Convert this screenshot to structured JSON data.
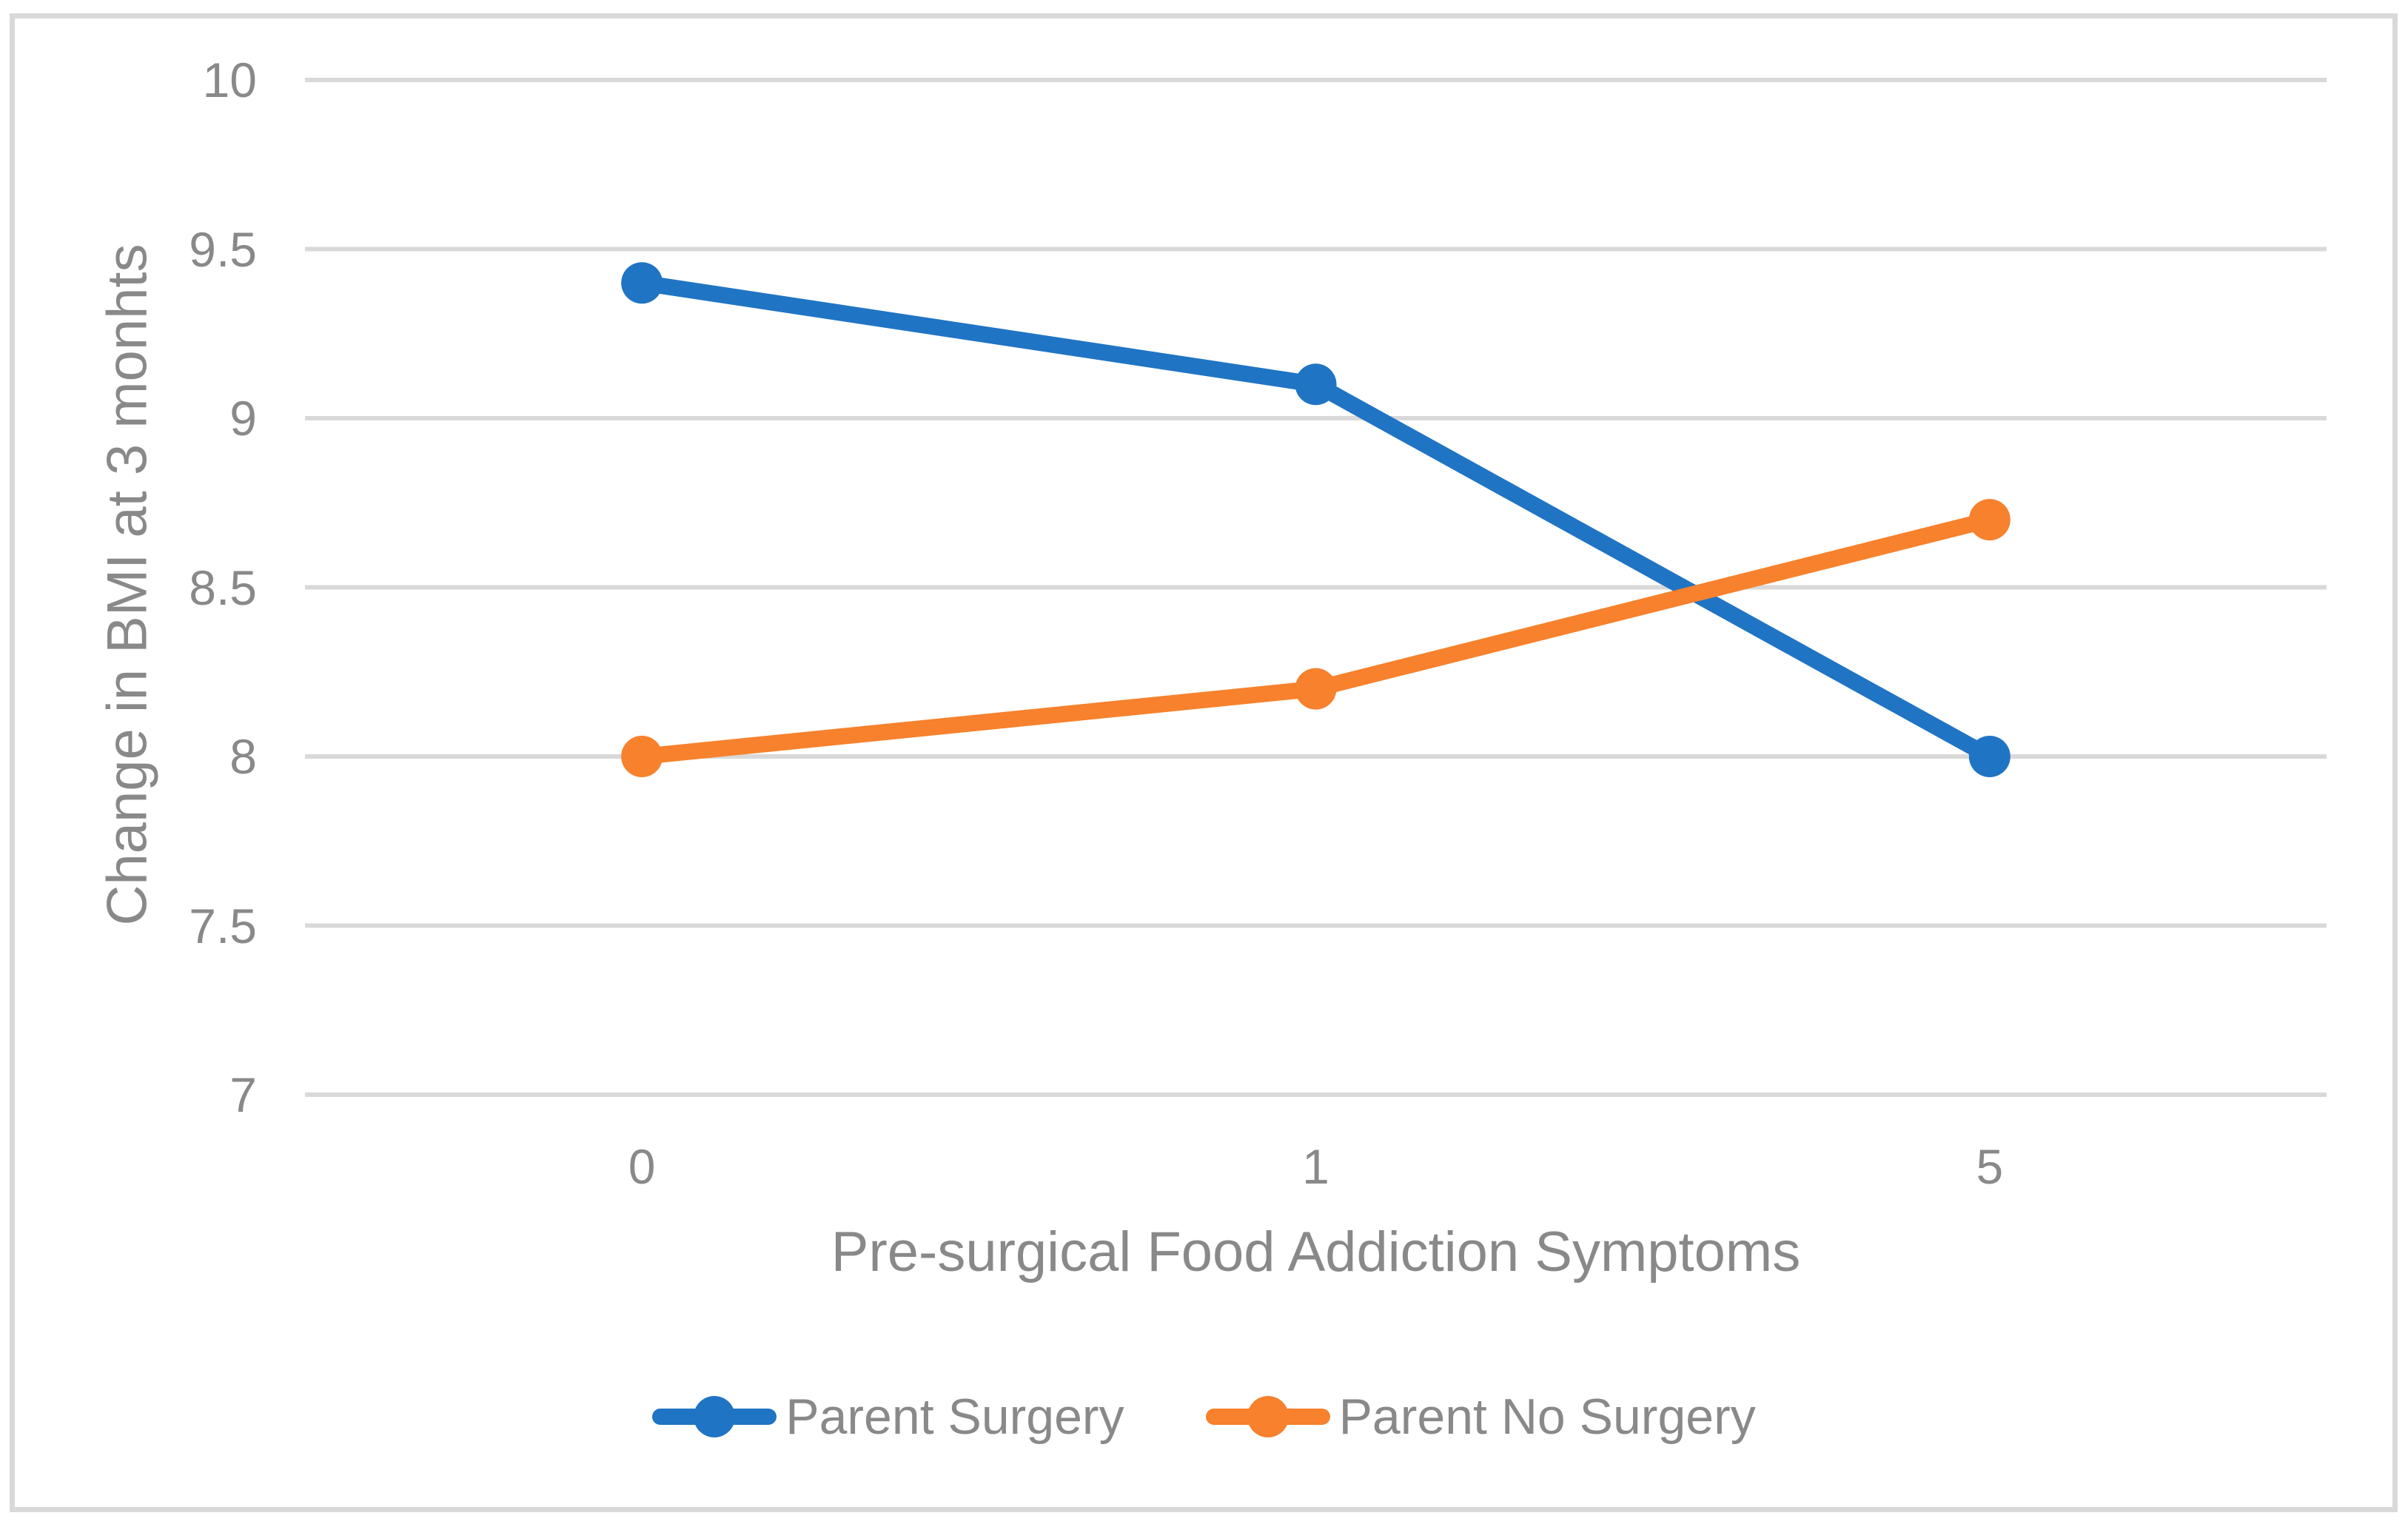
{
  "chart_data": {
    "type": "line",
    "title": "",
    "categories": [
      "0",
      "1",
      "5"
    ],
    "series": [
      {
        "name": "Parent Surgery",
        "color": "#2074C4",
        "values": [
          9.4,
          9.1,
          8.0
        ]
      },
      {
        "name": "Parent No Surgery",
        "color": "#F7812C",
        "values": [
          8.0,
          8.2,
          8.7
        ]
      }
    ],
    "xlabel": "Pre-surgical Food Addiction Symptoms",
    "ylabel": "Change in BMI at 3 monhts",
    "ylim": [
      7,
      10
    ],
    "ytick_values": [
      10,
      9.5,
      9,
      8.5,
      8,
      7.5,
      7
    ],
    "ytick_labels": [
      "10",
      "9.5",
      "9",
      "8.5",
      "8",
      "7.5",
      "7"
    ],
    "grid": true,
    "legend_position": "bottom"
  },
  "styles": {
    "grid_color": "#D9D9D9",
    "border_color": "#D9D9D9",
    "text_color": "#898989",
    "background": "#FFFFFF",
    "marker_style": "circle"
  }
}
